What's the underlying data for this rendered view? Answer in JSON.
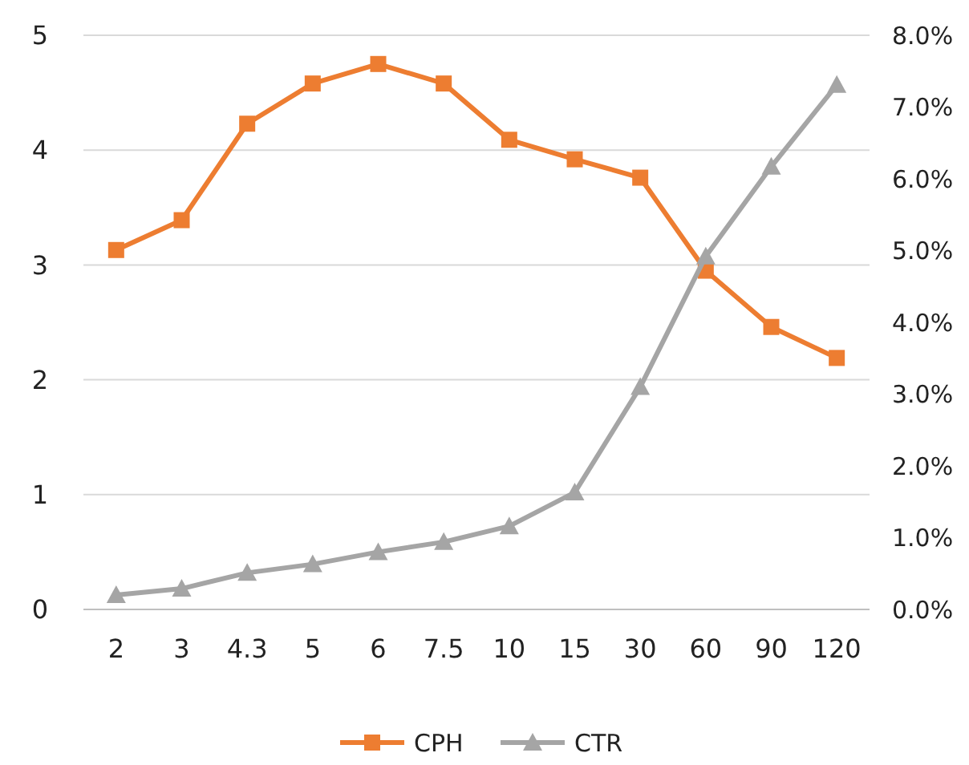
{
  "chart_data": {
    "type": "line",
    "categories": [
      "2",
      "3",
      "4.3",
      "5",
      "6",
      "7.5",
      "10",
      "15",
      "30",
      "60",
      "90",
      "120"
    ],
    "series": [
      {
        "name": "CPH",
        "color": "#ed7d31",
        "marker": "square",
        "values": [
          3.13,
          3.39,
          4.23,
          4.58,
          4.75,
          4.58,
          4.09,
          3.92,
          3.76,
          2.95,
          2.46,
          2.19
        ]
      },
      {
        "name": "CTR",
        "color": "#a5a5a5",
        "marker": "triangle",
        "axis": "y2",
        "values": [
          0.2,
          0.29,
          0.51,
          0.63,
          0.8,
          0.94,
          1.16,
          1.63,
          3.1,
          4.92,
          6.17,
          7.31
        ]
      }
    ],
    "ylim": [
      0,
      5
    ],
    "yticks": [
      0,
      1,
      2,
      3,
      4,
      5
    ],
    "y2lim": [
      0,
      8
    ],
    "y2ticks": [
      {
        "value": 0,
        "label": "0.0%"
      },
      {
        "value": 1,
        "label": "1.0%"
      },
      {
        "value": 2,
        "label": "2.0%"
      },
      {
        "value": 3,
        "label": "3.0%"
      },
      {
        "value": 4,
        "label": "4.0%"
      },
      {
        "value": 5,
        "label": "5.0%"
      },
      {
        "value": 6,
        "label": "6.0%"
      },
      {
        "value": 7,
        "label": "7.0%"
      },
      {
        "value": 8,
        "label": "8.0%"
      }
    ],
    "grid": "y",
    "legend": "bottom"
  }
}
